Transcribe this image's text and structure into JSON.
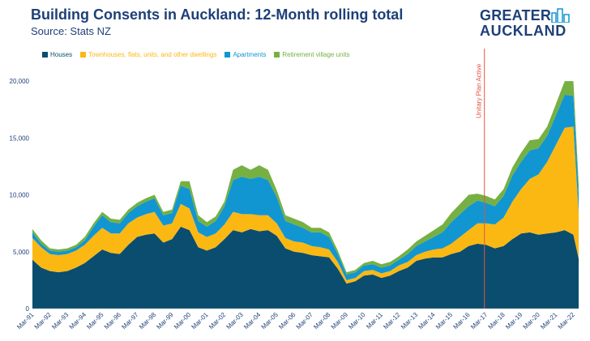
{
  "title": "Building Consents in Auckland: 12-Month rolling total",
  "subtitle": "Source: Stats NZ",
  "logo": {
    "line1": "GREATER",
    "line2": "AUCKLAND"
  },
  "colors": {
    "houses": "#0b4d6e",
    "townhouses": "#fbb813",
    "apartments": "#1196d2",
    "retirement": "#76b043",
    "annotation": "#e05544",
    "text": "#1e3f78"
  },
  "chart_data": {
    "type": "area",
    "stacked": true,
    "title": "Building Consents in Auckland: 12-Month rolling total",
    "ylim": [
      0,
      22000
    ],
    "yticks": [
      0,
      5000,
      10000,
      15000,
      20000
    ],
    "ytick_labels": [
      "0",
      "5,000",
      "10,000",
      "15,000",
      "20,000"
    ],
    "xticks": [
      "Mar-91",
      "Mar-92",
      "Mar-93",
      "Mar-94",
      "Mar-95",
      "Mar-96",
      "Mar-97",
      "Mar-98",
      "Mar-99",
      "Mar-00",
      "Mar-01",
      "Mar-02",
      "Mar-03",
      "Mar-04",
      "Mar-05",
      "Mar-06",
      "Mar-07",
      "Mar-08",
      "Mar-09",
      "Mar-10",
      "Mar-11",
      "Mar-12",
      "Mar-13",
      "Mar-14",
      "Mar-15",
      "Mar-16",
      "Mar-17",
      "Mar-18",
      "Mar-19",
      "Mar-20",
      "Mar-21",
      "Mar-22"
    ],
    "x": [
      1991.0,
      1991.5,
      1992.0,
      1992.5,
      1993.0,
      1993.5,
      1994.0,
      1994.5,
      1995.0,
      1995.5,
      1996.0,
      1996.5,
      1997.0,
      1997.5,
      1998.0,
      1998.5,
      1999.0,
      1999.5,
      2000.0,
      2000.5,
      2001.0,
      2001.5,
      2002.0,
      2002.5,
      2003.0,
      2003.5,
      2004.0,
      2004.5,
      2005.0,
      2005.5,
      2006.0,
      2006.5,
      2007.0,
      2007.5,
      2008.0,
      2008.5,
      2009.0,
      2009.5,
      2010.0,
      2010.5,
      2011.0,
      2011.5,
      2012.0,
      2012.5,
      2013.0,
      2013.5,
      2014.0,
      2014.5,
      2015.0,
      2015.5,
      2016.0,
      2016.5,
      2017.0,
      2017.5,
      2018.0,
      2018.5,
      2019.0,
      2019.5,
      2020.0,
      2020.5,
      2021.0,
      2021.5,
      2022.0,
      2022.3
    ],
    "legend": [
      "Houses",
      "Townhouses, flats, units, and other dwellings",
      "Apartments",
      "Retirement village units"
    ],
    "series": [
      {
        "name": "Houses",
        "values": [
          4300,
          3600,
          3300,
          3200,
          3300,
          3600,
          4000,
          4600,
          5200,
          4900,
          4800,
          5600,
          6300,
          6500,
          6600,
          5800,
          6100,
          7200,
          6900,
          5400,
          5100,
          5400,
          6100,
          6900,
          6700,
          7000,
          6800,
          6900,
          6400,
          5300,
          5000,
          4900,
          4700,
          4600,
          4500,
          3500,
          2200,
          2400,
          2900,
          3000,
          2700,
          2900,
          3300,
          3600,
          4200,
          4400,
          4500,
          4500,
          4800,
          5000,
          5500,
          5700,
          5600,
          5300,
          5500,
          6100,
          6600,
          6700,
          6500,
          6600,
          6700,
          6900,
          6500,
          4400
        ]
      },
      {
        "name": "Townhouses, flats, units, and other dwellings",
        "values": [
          1900,
          1800,
          1500,
          1500,
          1500,
          1500,
          1600,
          1800,
          1900,
          1700,
          1800,
          1900,
          1700,
          1800,
          1900,
          1500,
          1400,
          2000,
          1900,
          1300,
          1200,
          1200,
          1300,
          1600,
          1600,
          1300,
          1400,
          1300,
          1100,
          900,
          900,
          900,
          800,
          800,
          700,
          600,
          300,
          300,
          400,
          400,
          400,
          400,
          500,
          500,
          500,
          600,
          700,
          800,
          900,
          1300,
          1400,
          1800,
          1900,
          2100,
          2500,
          3300,
          3900,
          4700,
          5300,
          6300,
          7700,
          9000,
          9500,
          4000
        ]
      },
      {
        "name": "Apartments",
        "values": [
          500,
          300,
          300,
          300,
          300,
          300,
          400,
          800,
          1100,
          1000,
          900,
          900,
          1000,
          1100,
          1200,
          900,
          900,
          1600,
          1700,
          1000,
          900,
          1100,
          1600,
          2800,
          3300,
          3100,
          3400,
          3100,
          2300,
          1500,
          1500,
          1300,
          1200,
          1300,
          1100,
          700,
          500,
          500,
          500,
          500,
          500,
          500,
          500,
          700,
          800,
          900,
          1100,
          1400,
          1900,
          2000,
          2100,
          2000,
          1800,
          1600,
          1900,
          2300,
          2400,
          2500,
          2300,
          2300,
          2600,
          2900,
          2700,
          1800
        ]
      },
      {
        "name": "Retirement village units",
        "values": [
          300,
          300,
          200,
          200,
          200,
          200,
          300,
          300,
          300,
          300,
          300,
          300,
          300,
          300,
          300,
          300,
          300,
          400,
          700,
          500,
          400,
          400,
          400,
          900,
          1000,
          800,
          1000,
          900,
          600,
          500,
          500,
          500,
          400,
          400,
          400,
          300,
          200,
          200,
          200,
          300,
          300,
          300,
          300,
          400,
          400,
          500,
          600,
          700,
          800,
          900,
          1000,
          600,
          600,
          600,
          600,
          700,
          800,
          900,
          800,
          800,
          1000,
          1200,
          1300,
          800
        ]
      }
    ],
    "annotation": {
      "label": "Unitary Plan Active",
      "x": 2016.9
    }
  }
}
